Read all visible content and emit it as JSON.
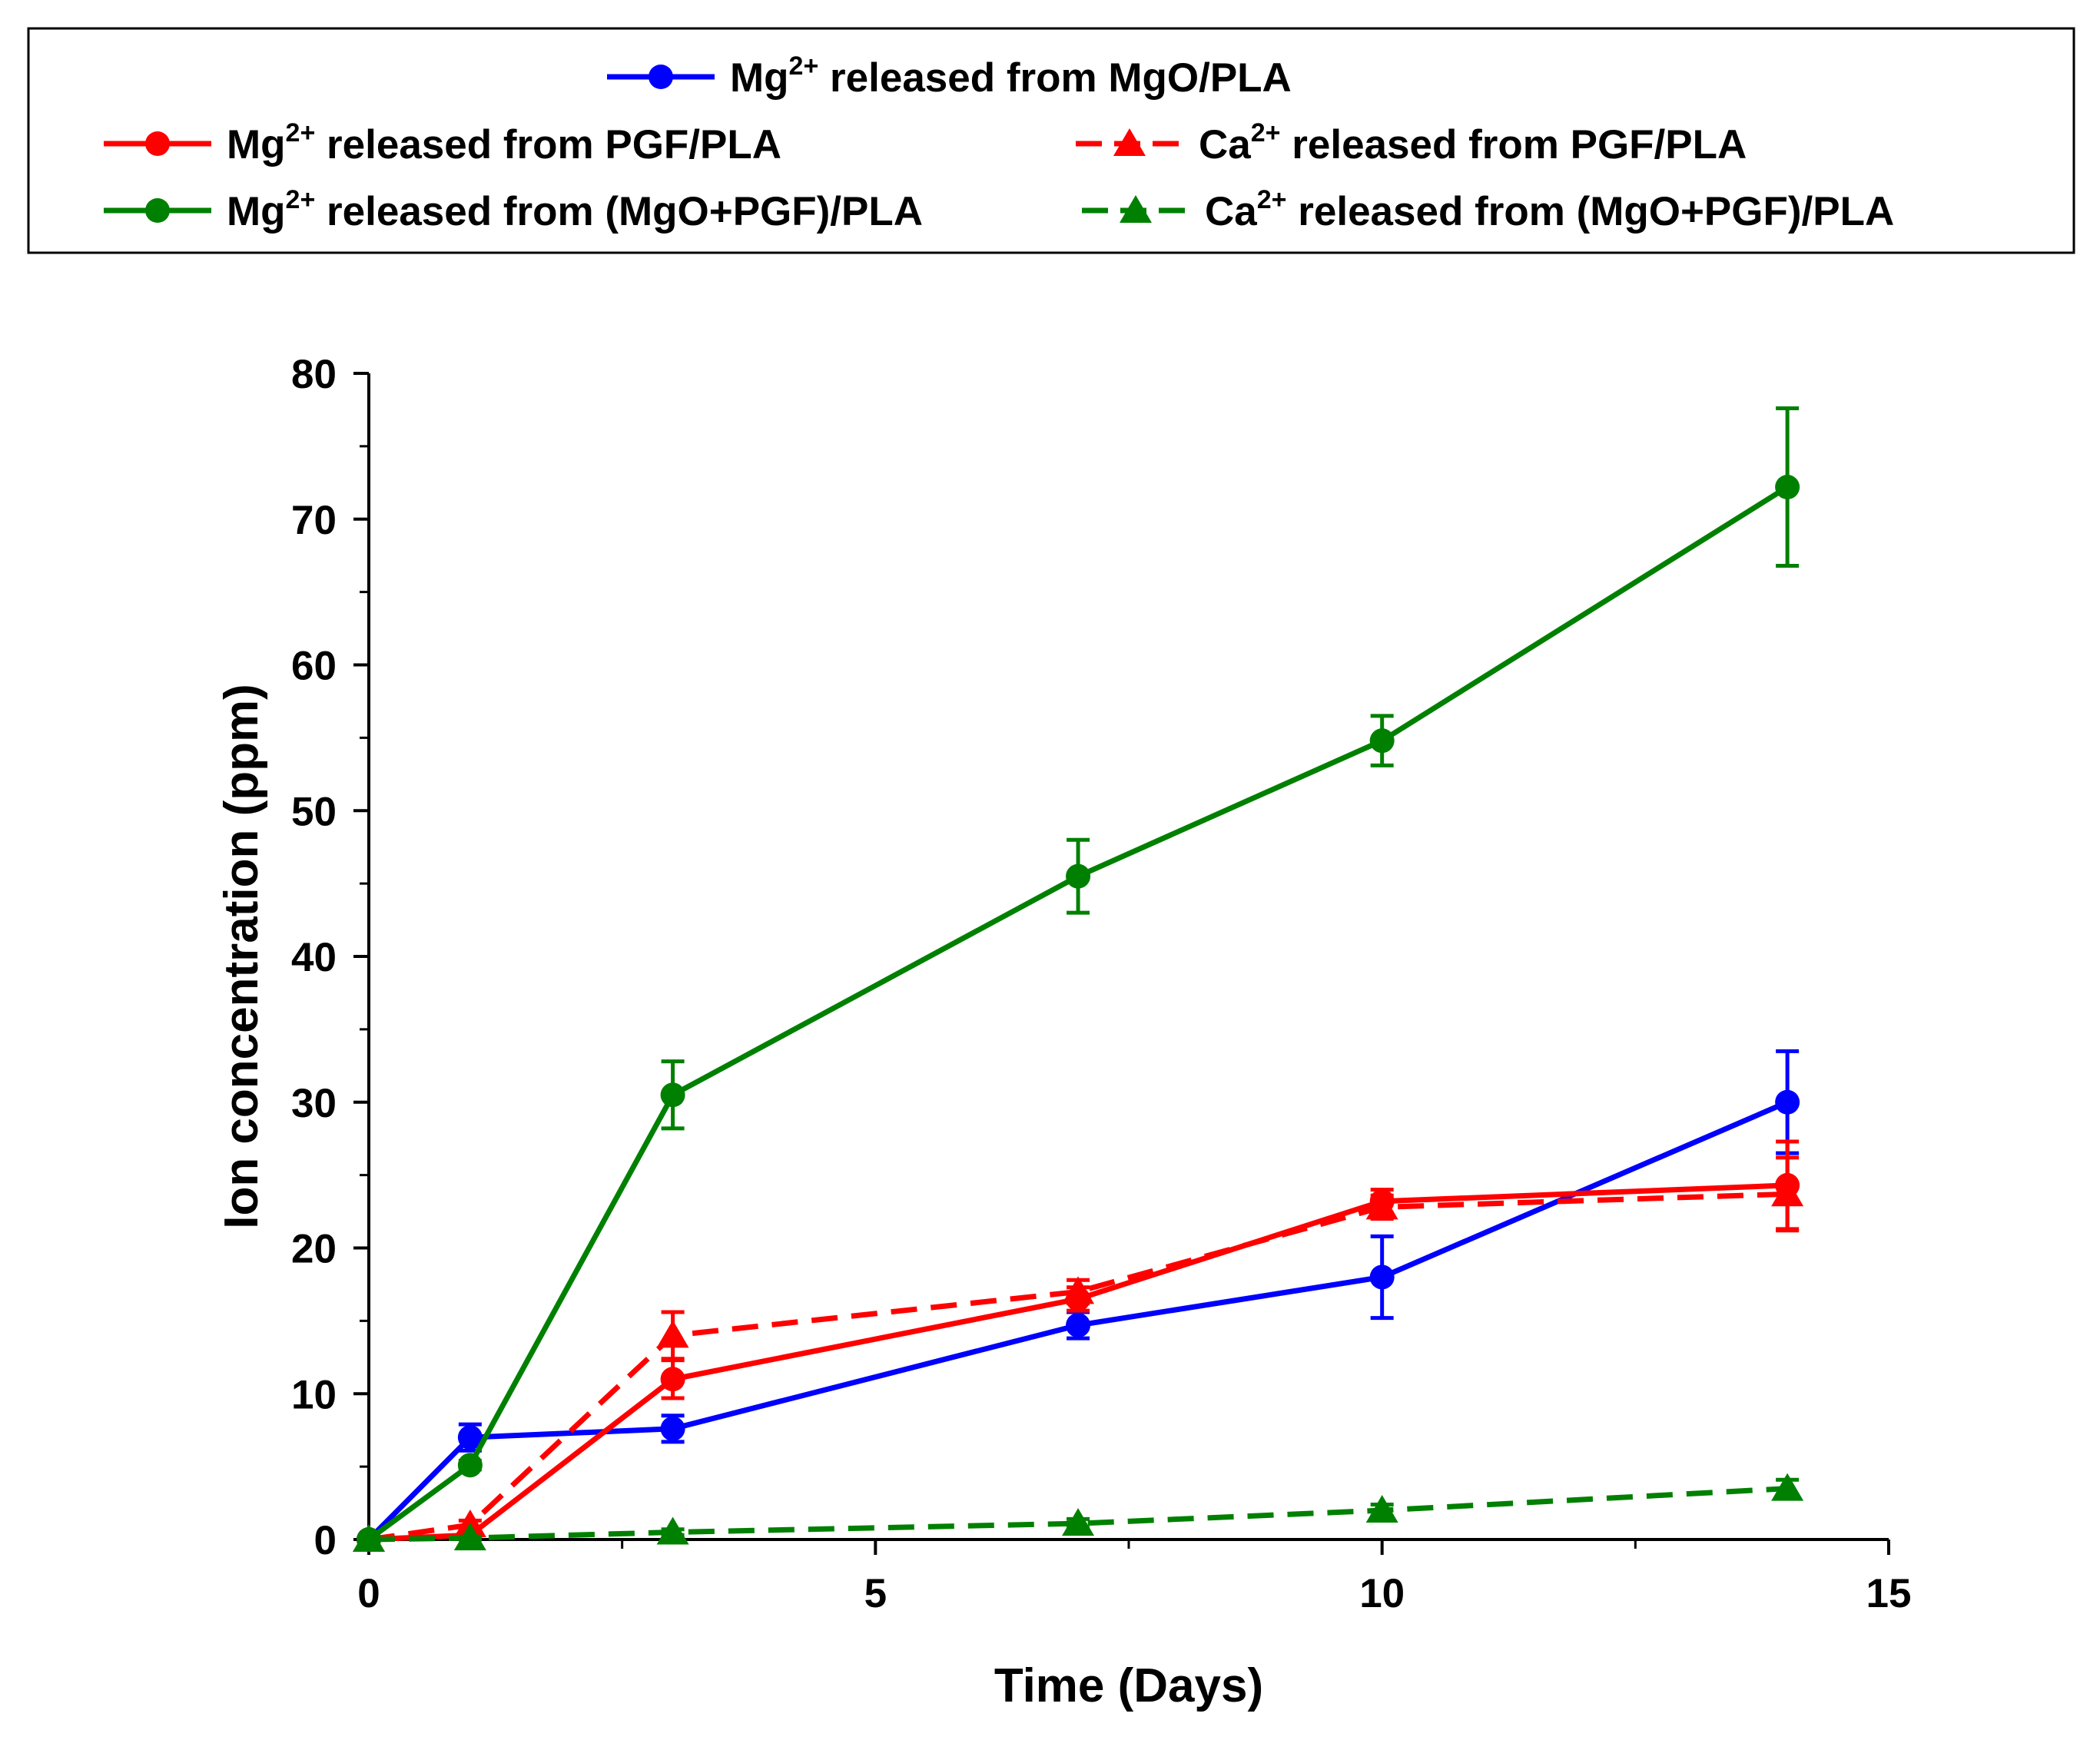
{
  "chart_data": {
    "type": "line",
    "xlabel": "Time (Days)",
    "ylabel": "Ion concentration (ppm)",
    "xlim": [
      0,
      15
    ],
    "ylim": [
      0,
      80
    ],
    "x_major_ticks": [
      0,
      5,
      10,
      15
    ],
    "x_tick_labels": [
      "0",
      "5",
      "10",
      "15"
    ],
    "x_minor_ticks": [
      2.5,
      7.5,
      12.5
    ],
    "y_major_ticks": [
      0,
      10,
      20,
      30,
      40,
      50,
      60,
      70,
      80
    ],
    "y_tick_labels": [
      "0",
      "10",
      "20",
      "30",
      "40",
      "50",
      "60",
      "70",
      "80"
    ],
    "y_minor_ticks": [
      5,
      15,
      25,
      35,
      45,
      55,
      65,
      75
    ],
    "grid": false,
    "legend_position": "top (boxed, above plot)",
    "series": [
      {
        "name": "Mg2+ released from MgO/PLA",
        "legend": {
          "ion": "Mg",
          "charge": "2+",
          "rest": "released from MgO/PLA"
        },
        "color": "#0000ff",
        "line": "solid",
        "marker": "circle",
        "x": [
          0,
          1,
          3,
          7,
          10,
          14
        ],
        "y": [
          0,
          7.0,
          7.6,
          14.7,
          18.0,
          30.0
        ],
        "err": [
          0,
          0.9,
          0.9,
          0.9,
          2.8,
          3.5
        ]
      },
      {
        "name": "Mg2+ released from PGF/PLA",
        "legend": {
          "ion": "Mg",
          "charge": "2+",
          "rest": "released from PGF/PLA"
        },
        "color": "#ff0000",
        "line": "solid",
        "marker": "circle",
        "x": [
          0,
          1,
          3,
          7,
          10,
          14
        ],
        "y": [
          0,
          0.3,
          11.0,
          16.5,
          23.2,
          24.3
        ],
        "err": [
          0,
          0.3,
          1.3,
          0.8,
          0.8,
          3.0
        ]
      },
      {
        "name": "Ca2+ released from PGF/PLA",
        "legend": {
          "ion": "Ca",
          "charge": "2+",
          "rest": "released from PGF/PLA"
        },
        "color": "#ff0000",
        "line": "dashed",
        "marker": "triangle",
        "x": [
          0,
          1,
          3,
          7,
          10,
          14
        ],
        "y": [
          0,
          1.0,
          14.0,
          17.0,
          22.8,
          23.7
        ],
        "err": [
          0,
          0.3,
          1.6,
          0.8,
          0.8,
          2.5
        ]
      },
      {
        "name": "Mg2+ released from (MgO+PGF)/PLA",
        "legend": {
          "ion": "Mg",
          "charge": "2+",
          "rest": "released from (MgO+PGF)/PLA"
        },
        "color": "#008000",
        "line": "solid",
        "marker": "circle",
        "x": [
          0,
          1,
          3,
          7,
          10,
          14
        ],
        "y": [
          0,
          5.1,
          30.5,
          45.5,
          54.8,
          72.2
        ],
        "err": [
          0,
          0.3,
          2.3,
          2.5,
          1.7,
          5.4
        ]
      },
      {
        "name": "Ca2+ released from (MgO+PGF)/PLA",
        "legend": {
          "ion": "Ca",
          "charge": "2+",
          "rest": "released from (MgO+PGF)/PLA"
        },
        "color": "#008000",
        "line": "dashed",
        "marker": "triangle",
        "x": [
          0,
          1,
          3,
          7,
          10,
          14
        ],
        "y": [
          0,
          0.1,
          0.5,
          1.1,
          2.0,
          3.5
        ],
        "err": [
          0,
          0.1,
          0.2,
          0.3,
          0.4,
          0.6
        ]
      }
    ]
  }
}
